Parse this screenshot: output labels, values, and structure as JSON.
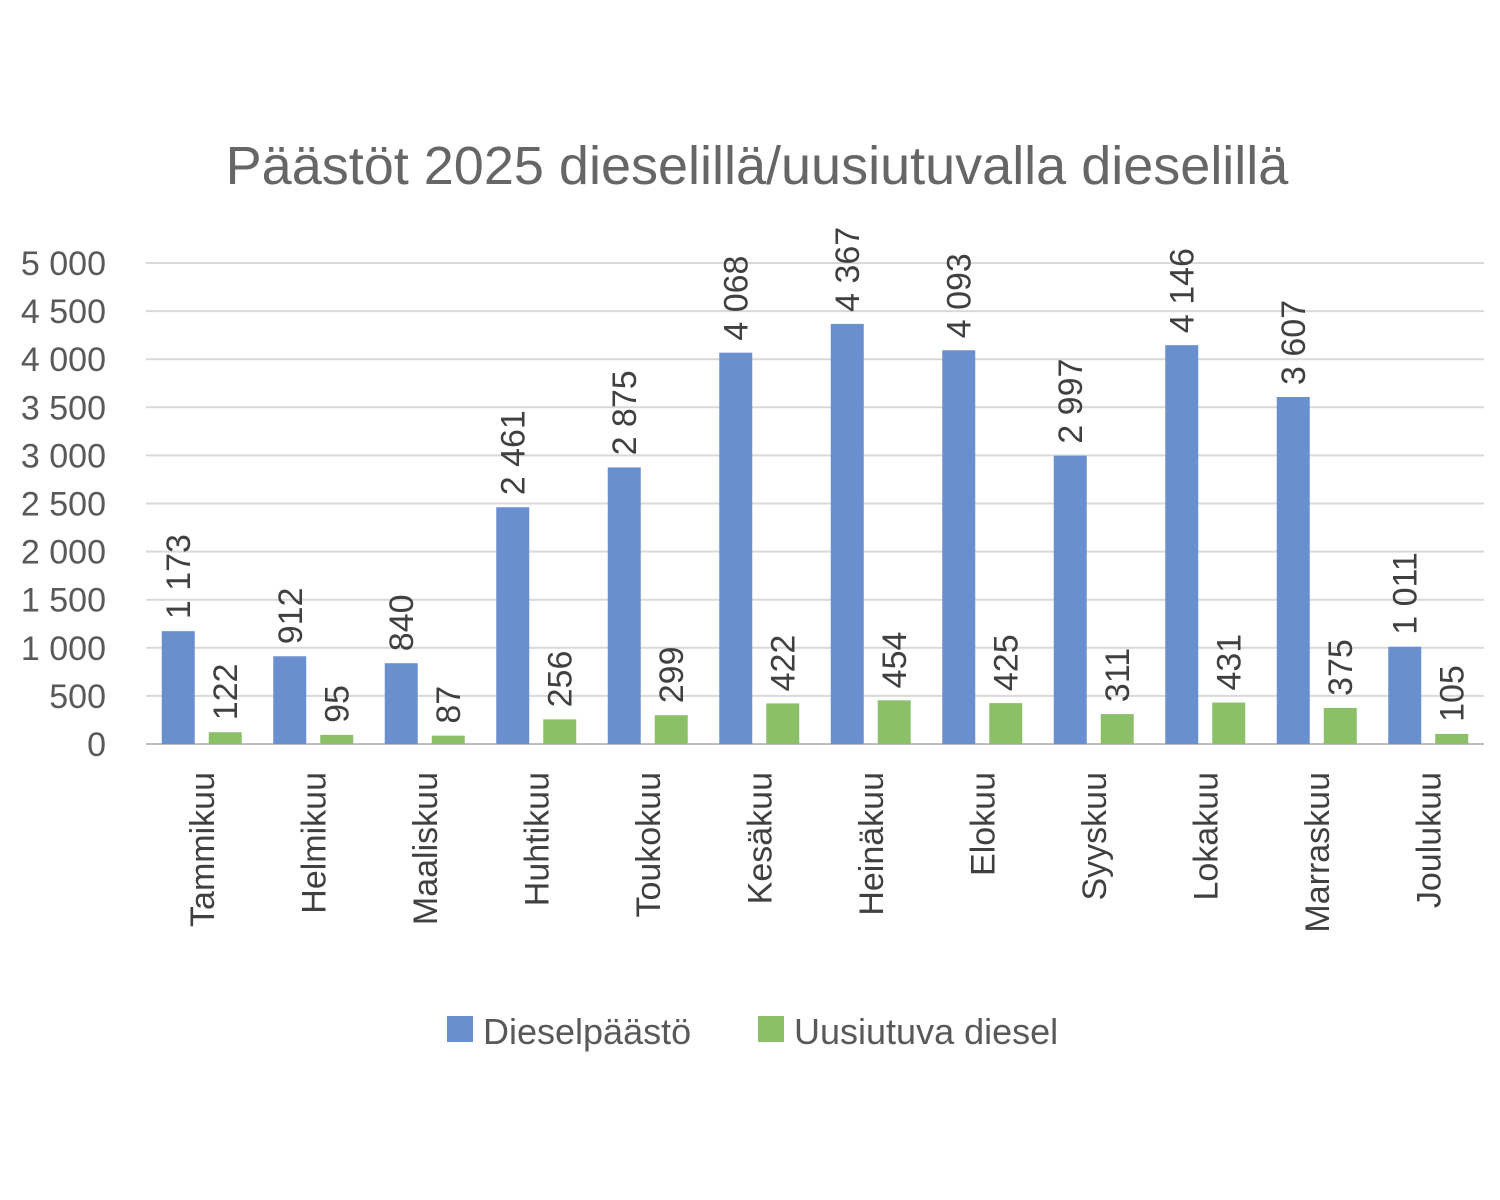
{
  "chart_data": {
    "type": "bar",
    "title": "Päästöt 2025 dieselillä/uusiutuvalla dieselillä",
    "xlabel": "",
    "ylabel": "",
    "categories": [
      "Tammikuu",
      "Helmikuu",
      "Maaliskuu",
      "Huhtikuu",
      "Toukokuu",
      "Kesäkuu",
      "Heinäkuu",
      "Elokuu",
      "Syyskuu",
      "Lokakuu",
      "Marraskuu",
      "Joulukuu"
    ],
    "series": [
      {
        "name": "Dieselpäästö",
        "color": "#6a8fcf",
        "values": [
          1173,
          912,
          840,
          2461,
          2875,
          4068,
          4367,
          4093,
          2997,
          4146,
          3607,
          1011
        ],
        "labels": [
          "1 173",
          "912",
          "840",
          "2 461",
          "2 875",
          "4 068",
          "4 367",
          "4 093",
          "2 997",
          "4 146",
          "3 607",
          "1 011"
        ]
      },
      {
        "name": "Uusiutuva diesel",
        "color": "#8cc068",
        "values": [
          122,
          95,
          87,
          256,
          299,
          422,
          454,
          425,
          311,
          431,
          375,
          105
        ],
        "labels": [
          "122",
          "95",
          "87",
          "256",
          "299",
          "422",
          "454",
          "425",
          "311",
          "431",
          "375",
          "105"
        ]
      }
    ],
    "ylim": [
      0,
      5000
    ],
    "yticks": [
      0,
      500,
      1000,
      1500,
      2000,
      2500,
      3000,
      3500,
      4000,
      4500,
      5000
    ],
    "ytick_labels": [
      "0",
      "500",
      "1 000",
      "1 500",
      "2 000",
      "2 500",
      "3 000",
      "3 500",
      "4 000",
      "4 500",
      "5 000"
    ],
    "grid": true,
    "legend_position": "bottom",
    "colors": {
      "gridline": "#d9d9d9",
      "axis": "#bfbfbf"
    }
  }
}
